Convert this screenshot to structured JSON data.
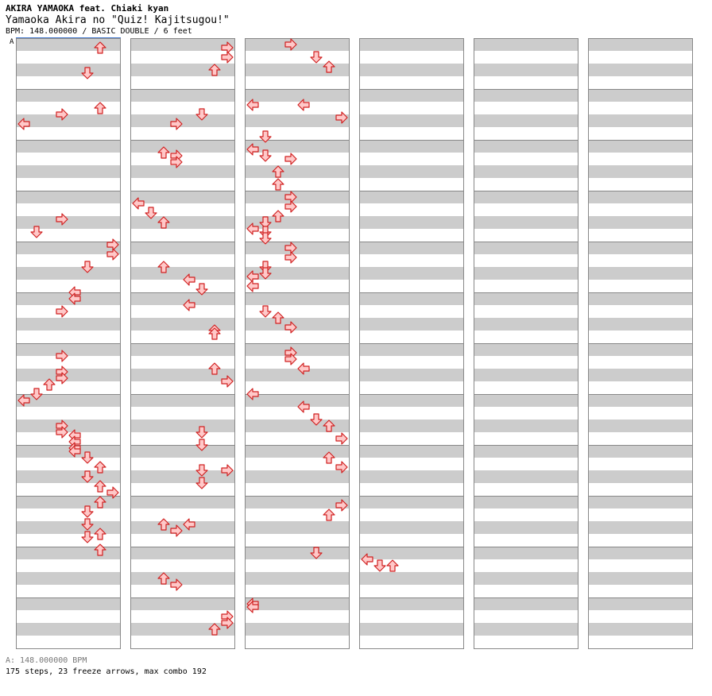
{
  "header": {
    "artist": "AKIRA YAMAOKA feat. Chiaki kyan",
    "title": "Yamaoka Akira no \"Quiz! Kajitsugou!\"",
    "info": "BPM: 148.000000 / BASIC DOUBLE / 6 feet"
  },
  "marker": "A",
  "footer": {
    "bpm_legend": "A: 148.000000 BPM",
    "stats": "175 steps, 23 freeze arrows, max combo 192"
  },
  "colors": {
    "arrow_fill": "#ffc8c8",
    "arrow_stroke": "#d02020",
    "freeze_fill": "#c8f5c8",
    "freeze_stroke": "#208020",
    "stripe": "#cccccc"
  },
  "chart_data": {
    "type": "step-chart",
    "mode": "double",
    "lanes": [
      "left-1",
      "down-1",
      "up-1",
      "right-1",
      "left-2",
      "down-2",
      "up-2",
      "right-2"
    ],
    "notes": [
      {
        "m": 1,
        "b": 0.25,
        "l": 6
      },
      {
        "m": 1,
        "b": 2.25,
        "l": 5
      },
      {
        "m": 2,
        "b": 1,
        "l": 6
      },
      {
        "m": 2,
        "b": 1.5,
        "l": 3
      },
      {
        "m": 2,
        "b": 2.25,
        "l": 0
      },
      {
        "m": 4,
        "b": 1.75,
        "l": 3
      },
      {
        "m": 4,
        "b": 2.75,
        "l": 1
      },
      {
        "m": 4,
        "b": 3.75,
        "l": 7
      },
      {
        "m": 5,
        "b": 0.5,
        "l": 7
      },
      {
        "m": 5,
        "b": 1.5,
        "l": 5
      },
      {
        "m": 5,
        "b": 3.5,
        "l": 4
      },
      {
        "m": 5,
        "b": 4,
        "l": 4
      },
      {
        "m": 6,
        "b": 1,
        "l": 3
      },
      {
        "m": 7,
        "b": 0.5,
        "l": 3
      },
      {
        "m": 7,
        "b": 1.75,
        "l": 3
      },
      {
        "m": 7,
        "b": 2.25,
        "l": 3
      },
      {
        "m": 7,
        "b": 2.75,
        "l": 2
      },
      {
        "m": 7,
        "b": 3.5,
        "l": 1
      },
      {
        "m": 8,
        "b": 0,
        "l": 0
      },
      {
        "m": 8,
        "b": 2,
        "l": 3
      },
      {
        "m": 8,
        "b": 2.5,
        "l": 3
      },
      {
        "m": 8,
        "b": 2.75,
        "l": 4
      },
      {
        "m": 8,
        "b": 3.25,
        "l": 4
      },
      {
        "m": 8,
        "b": 3.75,
        "l": 4
      },
      {
        "m": 9,
        "b": 0,
        "l": 4
      },
      {
        "m": 9,
        "b": 0.5,
        "l": 5
      },
      {
        "m": 9,
        "b": 1.25,
        "l": 6
      },
      {
        "m": 9,
        "b": 2,
        "l": 5
      },
      {
        "m": 9,
        "b": 2.75,
        "l": 6
      },
      {
        "m": 9,
        "b": 3.25,
        "l": 7
      },
      {
        "m": 10,
        "b": 0,
        "l": 6
      },
      {
        "m": 10,
        "b": 0.75,
        "l": 5
      },
      {
        "m": 10,
        "b": 1.75,
        "l": 5
      },
      {
        "m": 10,
        "b": 2.5,
        "l": 6
      },
      {
        "m": 10,
        "b": 2.75,
        "l": 5
      },
      {
        "m": 10,
        "b": 3.75,
        "l": 6
      },
      {
        "m": 1,
        "b": 0.25,
        "l": 15
      },
      {
        "m": 1,
        "b": 1,
        "l": 15
      },
      {
        "m": 1,
        "b": 2,
        "l": 14
      },
      {
        "m": 2,
        "b": 0.75,
        "l": 16
      },
      {
        "m": 2,
        "b": 1.5,
        "l": 13
      },
      {
        "m": 2,
        "b": 2.25,
        "l": 11
      },
      {
        "m": 3,
        "b": 0.5,
        "l": 10
      },
      {
        "m": 3,
        "b": 0.75,
        "l": 11
      },
      {
        "m": 3,
        "b": 1.25,
        "l": 11
      },
      {
        "m": 4,
        "b": 0.5,
        "l": 8
      },
      {
        "m": 4,
        "b": 1.25,
        "l": 9
      },
      {
        "m": 4,
        "b": 2,
        "l": 10
      },
      {
        "m": 5,
        "b": 1.5,
        "l": 10
      },
      {
        "m": 5,
        "b": 2.5,
        "l": 12
      },
      {
        "m": 5,
        "b": 3.25,
        "l": 13
      },
      {
        "m": 6,
        "b": 0.5,
        "l": 12
      },
      {
        "m": 6,
        "b": 2.5,
        "l": 14
      },
      {
        "m": 6,
        "b": 2.75,
        "l": 14
      },
      {
        "m": 7,
        "b": 1.5,
        "l": 14
      },
      {
        "m": 7,
        "b": 2.5,
        "l": 15
      },
      {
        "m": 7,
        "b": 3.5,
        "l": 16
      },
      {
        "m": 8,
        "b": 2.5,
        "l": 13
      },
      {
        "m": 8,
        "b": 3.5,
        "l": 13
      },
      {
        "m": 9,
        "b": 1.5,
        "l": 13
      },
      {
        "m": 9,
        "b": 1.5,
        "l": 15
      },
      {
        "m": 9,
        "b": 2.5,
        "l": 13
      },
      {
        "m": 10,
        "b": 1.75,
        "l": 10
      },
      {
        "m": 10,
        "b": 1.75,
        "l": 12
      },
      {
        "m": 10,
        "b": 2.25,
        "l": 11
      },
      {
        "m": 11,
        "b": 2,
        "l": 10
      },
      {
        "m": 11,
        "b": 2.5,
        "l": 11
      },
      {
        "m": 1,
        "b": 0,
        "l": 19
      },
      {
        "m": 1,
        "b": 1,
        "l": 21
      },
      {
        "m": 1,
        "b": 1.75,
        "l": 22
      },
      {
        "m": 2,
        "b": 0.75,
        "l": 20
      },
      {
        "m": 2,
        "b": 1.75,
        "l": 23
      },
      {
        "m": 2,
        "b": 3.25,
        "l": 17
      },
      {
        "m": 3,
        "b": 0.25,
        "l": 16
      },
      {
        "m": 3,
        "b": 0.75,
        "l": 17
      },
      {
        "m": 3,
        "b": 1,
        "l": 19
      },
      {
        "m": 3,
        "b": 2,
        "l": 18
      },
      {
        "m": 3,
        "b": 3,
        "l": 18
      },
      {
        "m": 4,
        "b": 0,
        "l": 19
      },
      {
        "m": 4,
        "b": 0.75,
        "l": 19
      },
      {
        "m": 4,
        "b": 1.5,
        "l": 18
      },
      {
        "m": 4,
        "b": 2,
        "l": 17
      },
      {
        "m": 4,
        "b": 2.5,
        "l": 16
      },
      {
        "m": 4,
        "b": 2.75,
        "l": 17
      },
      {
        "m": 4,
        "b": 3.25,
        "l": 17
      },
      {
        "m": 5,
        "b": 0,
        "l": 19
      },
      {
        "m": 5,
        "b": 0.75,
        "l": 19
      },
      {
        "m": 5,
        "b": 1.5,
        "l": 17
      },
      {
        "m": 5,
        "b": 2,
        "l": 17
      },
      {
        "m": 5,
        "b": 2.25,
        "l": 16
      },
      {
        "m": 5,
        "b": 3,
        "l": 16
      },
      {
        "m": 6,
        "b": 1,
        "l": 17
      },
      {
        "m": 6,
        "b": 1.5,
        "l": 18
      },
      {
        "m": 6,
        "b": 2.25,
        "l": 19
      },
      {
        "m": 7,
        "b": 0.25,
        "l": 19
      },
      {
        "m": 7,
        "b": 0.75,
        "l": 19
      },
      {
        "m": 7,
        "b": 1.5,
        "l": 20
      },
      {
        "m": 8,
        "b": 0.5,
        "l": 20
      },
      {
        "m": 8,
        "b": 1.5,
        "l": 21
      },
      {
        "m": 8,
        "b": 2,
        "l": 22
      },
      {
        "m": 8,
        "b": 3,
        "l": 23
      },
      {
        "m": 9,
        "b": 0.5,
        "l": 22
      },
      {
        "m": 9,
        "b": 1.25,
        "l": 23
      },
      {
        "m": 10,
        "b": 0.25,
        "l": 23
      },
      {
        "m": 10,
        "b": 1,
        "l": 22
      },
      {
        "m": 11,
        "b": 0,
        "l": 21
      },
      {
        "m": 11,
        "b": 0.5,
        "l": 24
      },
      {
        "m": 11,
        "b": 1,
        "l": 25
      },
      {
        "m": 11,
        "b": 1,
        "l": 26
      },
      {
        "m": 12,
        "b": 0,
        "l": 16
      },
      {
        "m": 12,
        "b": 0.25,
        "l": 16
      },
      {
        "m": 12,
        "b": 1,
        "l": 15
      },
      {
        "m": 12,
        "b": 1.5,
        "l": 15
      },
      {
        "m": 12,
        "b": 2,
        "l": 14
      }
    ]
  }
}
